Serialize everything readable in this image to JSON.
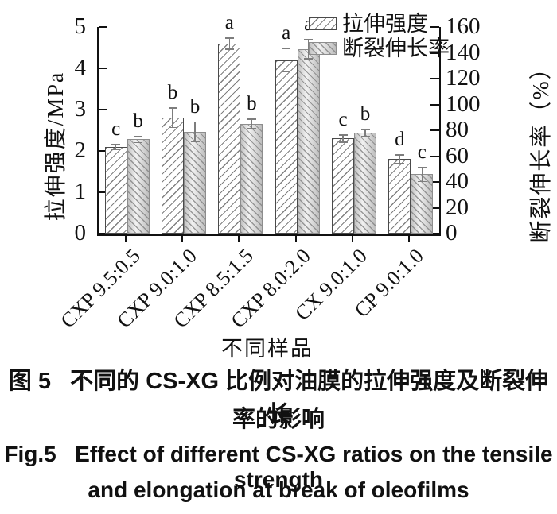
{
  "chart_data": {
    "type": "bar",
    "categories": [
      "CXP 9.5:0.5",
      "CXP 9.0:1.0",
      "CXP 8.5:1.5",
      "CXP 8.0:2.0",
      "CX 9.0:1.0",
      "CP 9.0:1.0"
    ],
    "series": [
      {
        "name": "拉伸强度",
        "axis": "left",
        "unit": "MPa",
        "values": [
          2.1,
          2.8,
          4.6,
          4.2,
          2.3,
          1.8
        ],
        "errors": [
          0.08,
          0.25,
          0.15,
          0.3,
          0.1,
          0.12
        ],
        "sig_letters": [
          "c",
          "b",
          "a",
          "a",
          "c",
          "d"
        ],
        "style": "fill-tensile"
      },
      {
        "name": "断裂伸长率",
        "axis": "right",
        "unit": "%",
        "values": [
          73,
          79,
          85,
          143,
          78,
          46
        ],
        "errors": [
          3,
          8,
          4,
          8,
          3,
          6
        ],
        "sig_letters": [
          "b",
          "b",
          "b",
          "a",
          "b",
          "c"
        ],
        "style": "fill-elong"
      }
    ],
    "left_axis": {
      "label": "拉伸强度/MPa",
      "min": 0,
      "max": 5,
      "ticks": [
        0,
        1,
        2,
        3,
        4,
        5
      ]
    },
    "right_axis": {
      "label": "断裂伸长率（%）",
      "min": 0,
      "max": 160,
      "ticks": [
        0,
        20,
        40,
        60,
        80,
        100,
        120,
        140,
        160
      ]
    },
    "xlabel": "不同样品",
    "legend_position": "top-right",
    "grid": false
  },
  "legend": {
    "items": [
      {
        "label": "拉伸强度",
        "swatch": "hatch-forward-white"
      },
      {
        "label": "断裂伸长率",
        "swatch": "hatch-back-gray"
      }
    ]
  },
  "caption": {
    "zh_line1": "图 5   不同的 CS-XG 比例对油膜的拉伸强度及断裂伸长",
    "zh_line2": "率的影响",
    "en_line1": "Fig.5   Effect of different CS-XG ratios on the tensile strength",
    "en_line2": "and elongation at break of oleofilms"
  },
  "colors": {
    "axis": "#111111",
    "hatch_tensile": "#696969",
    "hatch_elongation": "#828282",
    "elongation_fill_light": "#f2f2f2",
    "elongation_fill_dark": "#bdbdbd",
    "text": "#111111",
    "background": "#ffffff"
  }
}
